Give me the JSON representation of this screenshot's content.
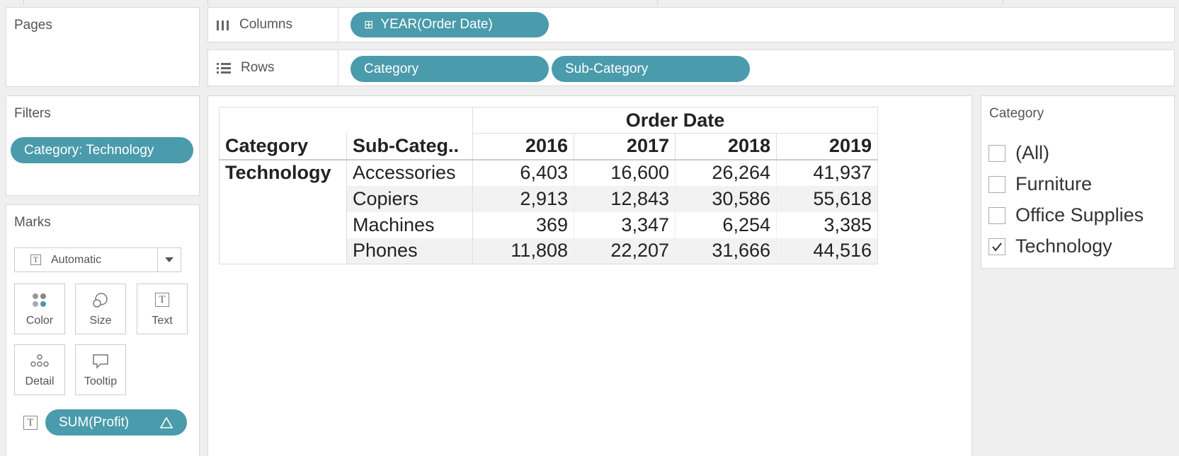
{
  "pages_shelf": {
    "title": "Pages"
  },
  "columns_shelf": {
    "label": "Columns",
    "pill": "YEAR(Order Date)"
  },
  "rows_shelf": {
    "label": "Rows",
    "pills": [
      "Category",
      "Sub-Category"
    ]
  },
  "filters_shelf": {
    "title": "Filters",
    "pill": "Category: Technology"
  },
  "marks_card": {
    "title": "Marks",
    "mark_type": "Automatic",
    "buttons": [
      "Color",
      "Size",
      "Text",
      "Detail",
      "Tooltip"
    ],
    "field": "SUM(Profit)",
    "field_icon": "delta-icon"
  },
  "crosstab": {
    "column_group_header": "Order Date",
    "row_headers": [
      "Category",
      "Sub-Categ.."
    ],
    "years": [
      "2016",
      "2017",
      "2018",
      "2019"
    ],
    "category": "Technology",
    "rows": [
      {
        "sub": "Accessories",
        "values": [
          "6,403",
          "16,600",
          "26,264",
          "41,937"
        ]
      },
      {
        "sub": "Copiers",
        "values": [
          "2,913",
          "12,843",
          "30,586",
          "55,618"
        ]
      },
      {
        "sub": "Machines",
        "values": [
          "369",
          "3,347",
          "6,254",
          "3,385"
        ]
      },
      {
        "sub": "Phones",
        "values": [
          "11,808",
          "22,207",
          "31,666",
          "44,516"
        ]
      }
    ]
  },
  "filter_card": {
    "title": "Category",
    "options": [
      {
        "label": "(All)",
        "checked": false
      },
      {
        "label": "Furniture",
        "checked": false
      },
      {
        "label": "Office Supplies",
        "checked": false
      },
      {
        "label": "Technology",
        "checked": true
      }
    ]
  },
  "colors": {
    "pill": "#4a9bab",
    "alt_row": "#f2f2f2"
  }
}
